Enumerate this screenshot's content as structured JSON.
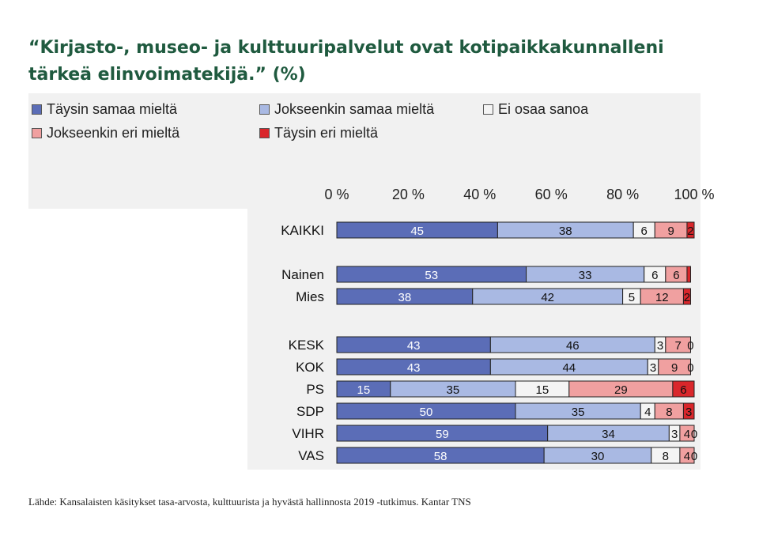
{
  "title": "“Kirjasto-, museo- ja kulttuuripalvelut ovat kotipaikkakunnalleni tärkeä elinvoimatekijä.” (%)",
  "source": "Lähde: Kansalaisten käsitykset tasa-arvosta, kulttuurista ja hyvästä hallinnosta 2019 -tutkimus. Kantar TNS",
  "chart_data": {
    "type": "bar",
    "orientation": "horizontal",
    "stacked": true,
    "xlim": [
      0,
      100
    ],
    "x_ticks": [
      "0 %",
      "20 %",
      "40 %",
      "60 %",
      "80 %",
      "100 %"
    ],
    "x_tick_values": [
      0,
      20,
      40,
      60,
      80,
      100
    ],
    "legend_position": "top",
    "categories": [
      "KAIKKI",
      "Nainen",
      "Mies",
      "KESK",
      "KOK",
      "PS",
      "SDP",
      "VIHR",
      "VAS"
    ],
    "groups": [
      [
        0
      ],
      [
        1,
        2
      ],
      [
        3,
        4,
        5,
        6,
        7,
        8
      ]
    ],
    "series": [
      {
        "name": "Täysin samaa mieltä",
        "color": "#5b6db7",
        "values": [
          45,
          53,
          38,
          43,
          43,
          15,
          50,
          59,
          58
        ]
      },
      {
        "name": "Jokseenkin samaa mieltä",
        "color": "#a9b9e3",
        "values": [
          38,
          33,
          42,
          46,
          44,
          35,
          35,
          34,
          30
        ]
      },
      {
        "name": "Ei osaa sanoa",
        "color": "#f4f4f4",
        "values": [
          6,
          6,
          5,
          3,
          3,
          15,
          4,
          3,
          8
        ]
      },
      {
        "name": "Jokseenkin eri mieltä",
        "color": "#f0a0a0",
        "values": [
          9,
          6,
          12,
          7,
          9,
          29,
          8,
          4,
          4
        ]
      },
      {
        "name": "Täysin eri mieltä",
        "color": "#d9262b",
        "values": [
          2,
          1,
          2,
          0,
          0,
          6,
          3,
          0,
          0
        ]
      }
    ],
    "data_labels": [
      [
        "45",
        "53",
        "38",
        "43",
        "43",
        "15",
        "50",
        "59",
        "58"
      ],
      [
        "38",
        "33",
        "42",
        "46",
        "44",
        "35",
        "35",
        "34",
        "30"
      ],
      [
        "6",
        "6",
        "5",
        "3",
        "3",
        "15",
        "4",
        "3",
        "8"
      ],
      [
        "9",
        "6",
        "12",
        "7",
        "9",
        "29",
        "8",
        "4",
        "4"
      ],
      [
        "2",
        "",
        "2",
        "0",
        "0",
        "6",
        "3",
        "0",
        "0"
      ]
    ]
  }
}
